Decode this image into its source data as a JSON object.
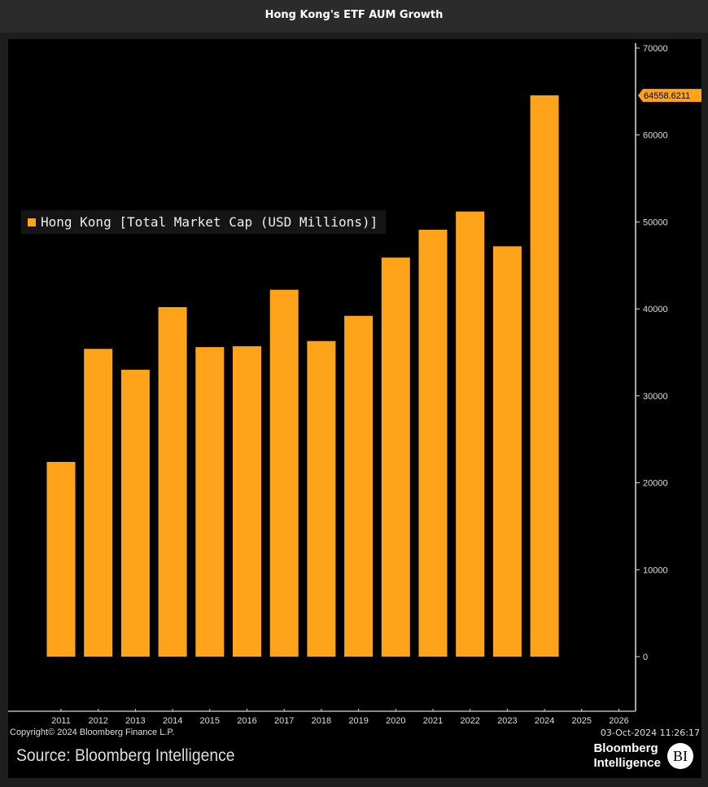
{
  "header": {
    "title": "Hong Kong's ETF AUM Growth"
  },
  "chart_data": {
    "type": "bar",
    "title": "Hong Kong's ETF AUM Growth",
    "categories": [
      "2011",
      "2012",
      "2013",
      "2014",
      "2015",
      "2016",
      "2017",
      "2018",
      "2019",
      "2020",
      "2021",
      "2022",
      "2023",
      "2024"
    ],
    "x_tick_labels": [
      "2011",
      "2012",
      "2013",
      "2014",
      "2015",
      "2016",
      "2017",
      "2018",
      "2019",
      "2020",
      "2021",
      "2022",
      "2023",
      "2024",
      "2025",
      "2026"
    ],
    "series": [
      {
        "name": "Hong Kong [Total Market Cap (USD Millions)]",
        "color": "#ffa31a",
        "values": [
          22400,
          35400,
          33000,
          40200,
          35600,
          35700,
          42200,
          36300,
          39200,
          45900,
          49100,
          51200,
          47200,
          64558.6211
        ]
      }
    ],
    "last_value_label": "64558.6211",
    "y_ticks": [
      "0",
      "10000",
      "20000",
      "30000",
      "40000",
      "50000",
      "60000",
      "70000"
    ],
    "ylim": [
      -5000,
      70000
    ],
    "y_axis_side": "right",
    "grid": false,
    "legend_placement": "top-left",
    "background": "#000000"
  },
  "footer": {
    "copyright": "Copyright© 2024 Bloomberg Finance L.P.",
    "timestamp": "03-Oct-2024 11:26:17",
    "source": "Source: Bloomberg Intelligence",
    "logo_text_1": "Bloomberg",
    "logo_text_2": "Intelligence",
    "logo_badge": "BI"
  }
}
